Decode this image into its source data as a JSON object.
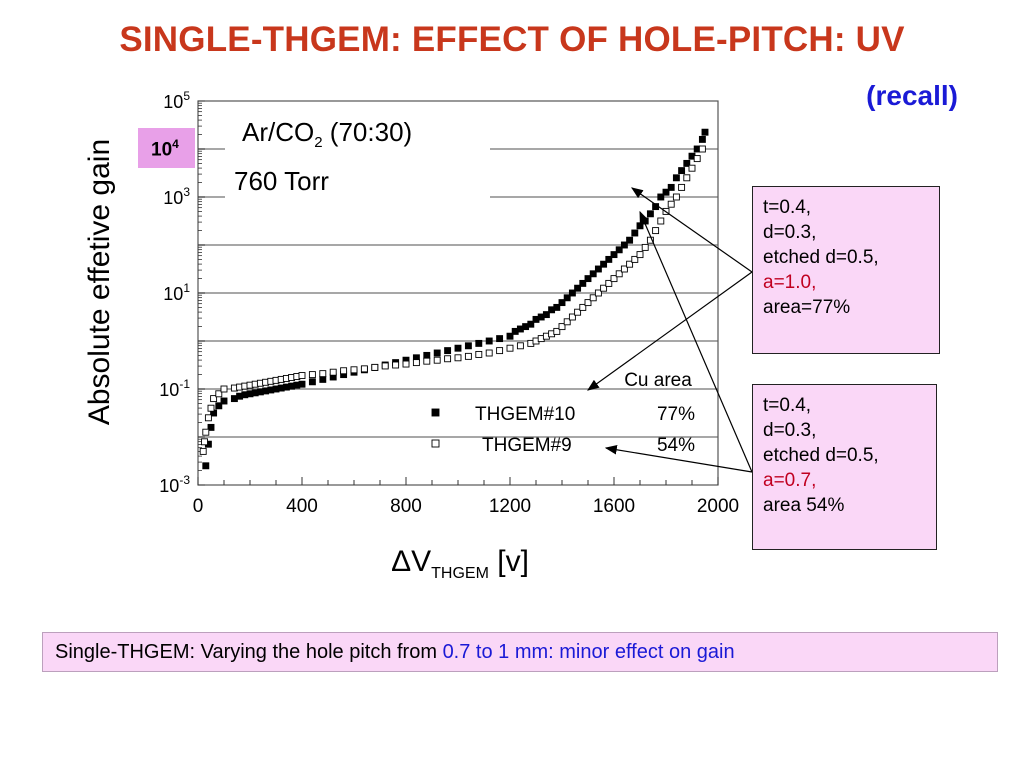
{
  "title": "SINGLE-THGEM: EFFECT OF HOLE-PITCH: UV",
  "recall": "(recall)",
  "annotations": {
    "gas": "Ar/CO",
    "gas_sub": "2",
    "gas_ratio": " (70:30)",
    "pressure": "760 Torr",
    "highlight_tick_base": "10",
    "highlight_tick_exp": "4"
  },
  "legend": {
    "header": "Cu area",
    "rows": [
      {
        "name": "THGEM#10",
        "value": "77%",
        "marker": "filled"
      },
      {
        "name": "THGEM#9",
        "value": "54%",
        "marker": "open"
      }
    ]
  },
  "info_boxes": [
    {
      "t": "t=0.4,",
      "d": "d=0.3,",
      "etched": "etched d=0.5,",
      "a": "a=1.0,",
      "area": "area=77%"
    },
    {
      "t": "t=0.4,",
      "d": "d=0.3,",
      "etched": "etched d=0.5,",
      "a": "a=0.7,",
      "area": "area 54%"
    }
  ],
  "caption": {
    "prefix": "Single-THGEM: Varying the hole pitch from ",
    "highlight": "0.7 to 1 mm: minor effect on gain"
  },
  "colors": {
    "title": "#c8371c",
    "recall": "#1a1ad6",
    "box_fill": "#fad7f7",
    "highlight_text": "#c00020"
  },
  "chart_data": {
    "type": "scatter",
    "xlabel": "ΔV",
    "xlabel_sub": "THGEM",
    "xlabel_unit": " [v]",
    "ylabel": "Absolute effetive gain",
    "xlim": [
      0,
      2000
    ],
    "ylim_log10": [
      -3,
      5
    ],
    "y_scale": "log",
    "x_ticks": [
      "0",
      "400",
      "800",
      "1200",
      "1600",
      "2000"
    ],
    "x_tick_values": [
      0,
      400,
      800,
      1200,
      1600,
      2000
    ],
    "y_ticks": [
      {
        "base": "10",
        "exp": "5",
        "log": 5
      },
      {
        "base": "10",
        "exp": "3",
        "log": 3
      },
      {
        "base": "10",
        "exp": "1",
        "log": 1
      },
      {
        "base": "10",
        "exp": "-1",
        "log": -1
      },
      {
        "base": "10",
        "exp": "-3",
        "log": -3
      }
    ],
    "grid_log": [
      4,
      3,
      2,
      1,
      0,
      -1,
      -2
    ],
    "series": [
      {
        "name": "THGEM#10",
        "marker": "filled-square",
        "x": [
          30,
          40,
          50,
          60,
          80,
          100,
          140,
          160,
          180,
          200,
          220,
          240,
          260,
          280,
          300,
          320,
          340,
          360,
          380,
          400,
          440,
          480,
          520,
          560,
          600,
          640,
          680,
          720,
          760,
          800,
          840,
          880,
          920,
          960,
          1000,
          1040,
          1080,
          1120,
          1160,
          1200,
          1220,
          1240,
          1260,
          1280,
          1300,
          1320,
          1340,
          1360,
          1380,
          1400,
          1420,
          1440,
          1460,
          1480,
          1500,
          1520,
          1540,
          1560,
          1580,
          1600,
          1620,
          1640,
          1660,
          1680,
          1700,
          1720,
          1740,
          1760,
          1780,
          1800,
          1820,
          1840,
          1860,
          1880,
          1900,
          1920,
          1940,
          1950
        ],
        "y_log10": [
          -2.6,
          -2.15,
          -1.8,
          -1.5,
          -1.35,
          -1.25,
          -1.2,
          -1.15,
          -1.12,
          -1.1,
          -1.08,
          -1.06,
          -1.04,
          -1.02,
          -1.0,
          -0.98,
          -0.96,
          -0.94,
          -0.92,
          -0.9,
          -0.85,
          -0.8,
          -0.75,
          -0.7,
          -0.65,
          -0.6,
          -0.55,
          -0.5,
          -0.45,
          -0.4,
          -0.35,
          -0.3,
          -0.25,
          -0.2,
          -0.15,
          -0.1,
          -0.05,
          0.0,
          0.05,
          0.1,
          0.2,
          0.25,
          0.3,
          0.35,
          0.45,
          0.5,
          0.55,
          0.65,
          0.7,
          0.8,
          0.9,
          1.0,
          1.1,
          1.2,
          1.3,
          1.4,
          1.5,
          1.6,
          1.7,
          1.8,
          1.9,
          2.0,
          2.1,
          2.25,
          2.4,
          2.5,
          2.65,
          2.8,
          3.0,
          3.1,
          3.2,
          3.4,
          3.55,
          3.7,
          3.85,
          4.0,
          4.2,
          4.35
        ]
      },
      {
        "name": "THGEM#9",
        "marker": "open-square",
        "x": [
          20,
          25,
          30,
          40,
          50,
          60,
          80,
          100,
          140,
          160,
          180,
          200,
          220,
          240,
          260,
          280,
          300,
          320,
          340,
          360,
          380,
          400,
          440,
          480,
          520,
          560,
          600,
          640,
          680,
          720,
          760,
          800,
          840,
          880,
          920,
          960,
          1000,
          1040,
          1080,
          1120,
          1160,
          1200,
          1240,
          1280,
          1300,
          1320,
          1340,
          1360,
          1380,
          1400,
          1420,
          1440,
          1460,
          1480,
          1500,
          1520,
          1540,
          1560,
          1580,
          1600,
          1620,
          1640,
          1660,
          1680,
          1700,
          1720,
          1740,
          1760,
          1780,
          1800,
          1820,
          1840,
          1860,
          1880,
          1900,
          1920,
          1940
        ],
        "y_log10": [
          -2.3,
          -2.1,
          -1.9,
          -1.6,
          -1.4,
          -1.2,
          -1.1,
          -1.0,
          -0.98,
          -0.96,
          -0.94,
          -0.92,
          -0.9,
          -0.88,
          -0.86,
          -0.84,
          -0.82,
          -0.8,
          -0.78,
          -0.76,
          -0.74,
          -0.72,
          -0.7,
          -0.68,
          -0.65,
          -0.62,
          -0.6,
          -0.58,
          -0.55,
          -0.52,
          -0.5,
          -0.48,
          -0.45,
          -0.42,
          -0.4,
          -0.37,
          -0.35,
          -0.32,
          -0.28,
          -0.25,
          -0.2,
          -0.15,
          -0.1,
          -0.05,
          0.0,
          0.05,
          0.1,
          0.15,
          0.2,
          0.3,
          0.4,
          0.5,
          0.6,
          0.7,
          0.8,
          0.9,
          1.0,
          1.1,
          1.2,
          1.3,
          1.4,
          1.5,
          1.6,
          1.7,
          1.8,
          1.95,
          2.1,
          2.3,
          2.5,
          2.7,
          2.85,
          3.0,
          3.2,
          3.4,
          3.6,
          3.8,
          4.0
        ]
      }
    ]
  }
}
